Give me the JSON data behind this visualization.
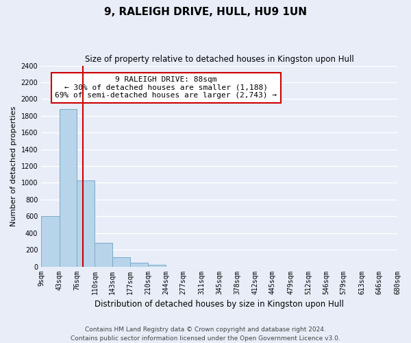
{
  "title": "9, RALEIGH DRIVE, HULL, HU9 1UN",
  "subtitle": "Size of property relative to detached houses in Kingston upon Hull",
  "xlabel": "Distribution of detached houses by size in Kingston upon Hull",
  "ylabel": "Number of detached properties",
  "bin_edges": [
    9,
    43,
    76,
    110,
    143,
    177,
    210,
    244,
    277,
    311,
    345,
    378,
    412,
    445,
    479,
    512,
    546,
    579,
    613,
    646,
    680
  ],
  "bar_heights": [
    600,
    1880,
    1030,
    280,
    110,
    45,
    20,
    0,
    0,
    0,
    0,
    0,
    0,
    0,
    0,
    0,
    0,
    0,
    0,
    0
  ],
  "bar_color": "#b8d4ea",
  "bar_edge_color": "#7aaac8",
  "vline_x": 88,
  "vline_color": "#cc0000",
  "ylim": [
    0,
    2400
  ],
  "yticks": [
    0,
    200,
    400,
    600,
    800,
    1000,
    1200,
    1400,
    1600,
    1800,
    2000,
    2200,
    2400
  ],
  "annotation_title": "9 RALEIGH DRIVE: 88sqm",
  "annotation_line1": "← 30% of detached houses are smaller (1,188)",
  "annotation_line2": "69% of semi-detached houses are larger (2,743) →",
  "annotation_box_color": "#ffffff",
  "annotation_box_edge": "#cc0000",
  "footer1": "Contains HM Land Registry data © Crown copyright and database right 2024.",
  "footer2": "Contains public sector information licensed under the Open Government Licence v3.0.",
  "bg_color": "#e8edf8",
  "grid_color": "#ffffff",
  "title_fontsize": 11,
  "subtitle_fontsize": 8.5,
  "xlabel_fontsize": 8.5,
  "ylabel_fontsize": 8,
  "tick_fontsize": 7,
  "footer_fontsize": 6.5
}
